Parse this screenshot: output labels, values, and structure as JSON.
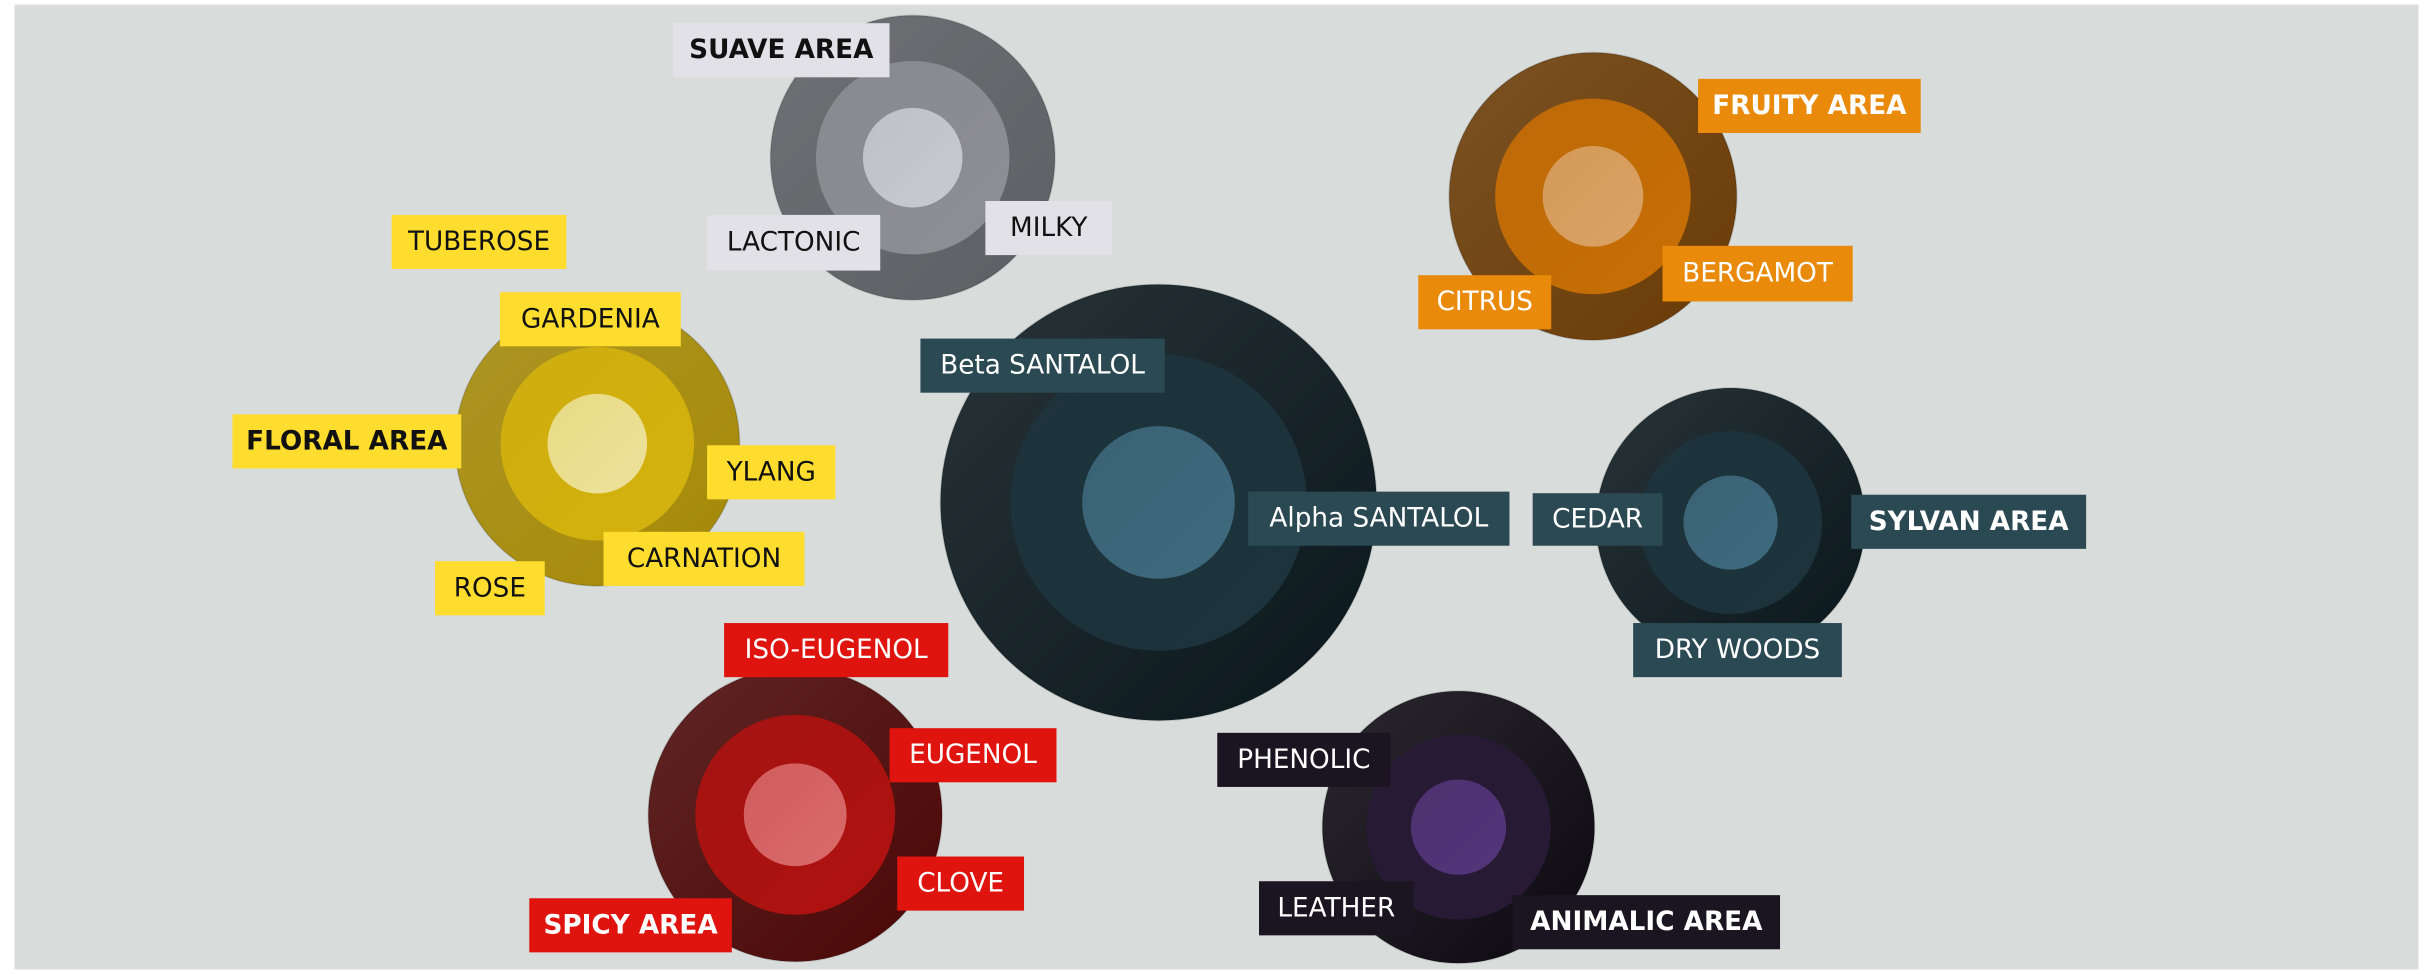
{
  "areas": [
    {
      "name": "SUAVE AREA",
      "notes": [
        "LACTONIC",
        "MILKY"
      ]
    },
    {
      "name": "FRUITY AREA",
      "notes": [
        "BERGAMOT",
        "CITRUS"
      ]
    },
    {
      "name": "FLORAL AREA",
      "notes": [
        "TUBEROSE",
        "GARDENIA",
        "YLANG",
        "CARNATION",
        "ROSE"
      ]
    },
    {
      "notes": [
        "Beta SANTALOL",
        "Alpha SANTALOL"
      ]
    },
    {
      "name": "SYLVAN AREA",
      "notes": [
        "CEDAR",
        "DRY WOODS"
      ]
    },
    {
      "name": "SPICY AREA",
      "notes": [
        "ISO-EUGENOL",
        "EUGENOL",
        "CLOVE"
      ]
    },
    {
      "name": "ANIMALIC AREA",
      "notes": [
        "PHENOLIC",
        "LEATHER"
      ]
    }
  ]
}
